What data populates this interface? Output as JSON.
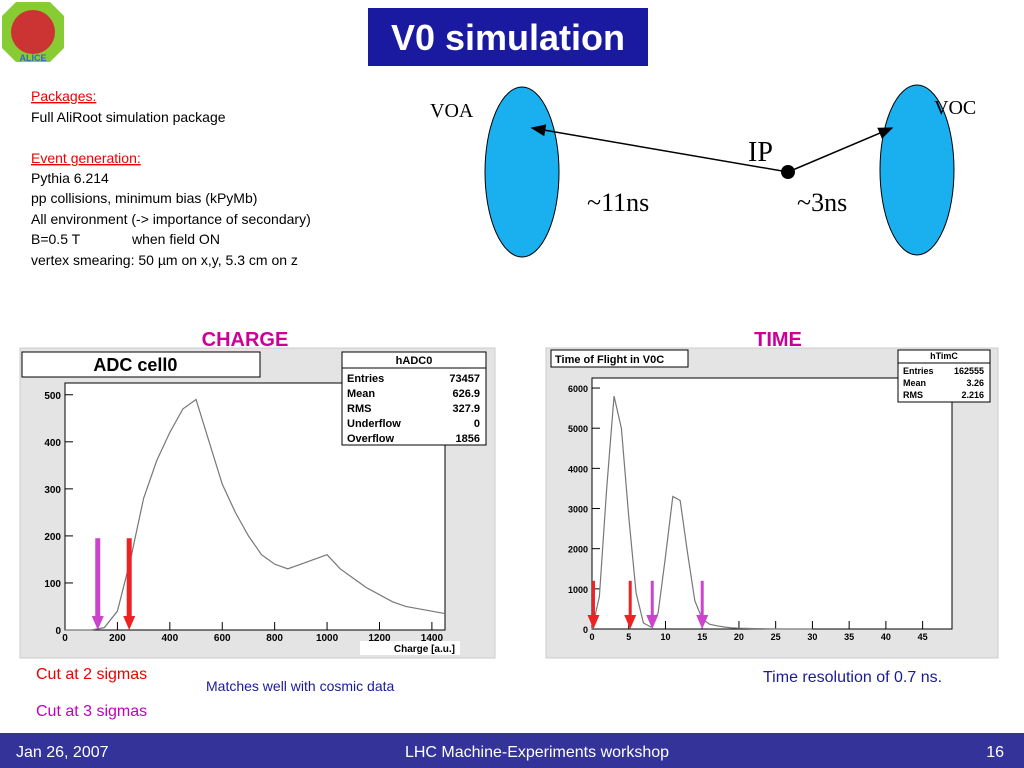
{
  "title": "V0 simulation",
  "logo": "ALICE",
  "packages": {
    "heading": "Packages:",
    "lines": [
      "Full AliRoot simulation package"
    ]
  },
  "event_generation": {
    "heading": "Event generation:",
    "lines": [
      "Pythia 6.214",
      "pp collisions, minimum bias (kPyMb)",
      "All environment (-> importance of secondary)",
      "B=0.5 T",
      "vertex smearing: 50 µm on x,y, 5.3 cm on z"
    ],
    "field_note": "when field ON"
  },
  "diagram": {
    "left": "VOA",
    "right": "VOC",
    "point": "IP",
    "left_time": "~11ns",
    "right_time": "~3ns"
  },
  "headings": [
    "CHARGE",
    "TIME"
  ],
  "chart_data": [
    {
      "type": "histogram",
      "title": "ADC cell0",
      "xlabel": "Charge [a.u.]",
      "color": "#777777",
      "stats": {
        "name": "hADC0",
        "rows": [
          [
            "Entries",
            "73457"
          ],
          [
            "Mean",
            "626.9"
          ],
          [
            "RMS",
            "327.9"
          ],
          [
            "Underflow",
            "0"
          ],
          [
            "Overflow",
            "1856"
          ]
        ]
      },
      "x": [
        0,
        50,
        100,
        150,
        200,
        250,
        300,
        350,
        400,
        450,
        500,
        550,
        600,
        650,
        700,
        750,
        800,
        850,
        900,
        950,
        1000,
        1050,
        1100,
        1150,
        1200,
        1250,
        1300,
        1350,
        1400,
        1450
      ],
      "values": [
        0,
        0,
        0,
        5,
        40,
        150,
        280,
        360,
        420,
        470,
        490,
        400,
        310,
        250,
        200,
        160,
        140,
        130,
        140,
        150,
        160,
        130,
        110,
        90,
        75,
        60,
        50,
        45,
        40,
        35
      ],
      "xlim": [
        0,
        1450
      ],
      "ylim": [
        0,
        525
      ],
      "xticks": [
        0,
        200,
        400,
        600,
        800,
        1000,
        1200,
        1400
      ],
      "yticks": [
        0,
        100,
        200,
        300,
        400,
        500
      ],
      "arrows": [
        {
          "x": 125,
          "y": 195,
          "color": "#cc44cc"
        },
        {
          "x": 245,
          "y": 195,
          "color": "#ee2222"
        }
      ]
    },
    {
      "type": "histogram",
      "title": "Time of Flight in V0C",
      "color": "#777777",
      "stats": {
        "name": "hTimC",
        "rows": [
          [
            "Entries",
            "162555"
          ],
          [
            "Mean",
            "3.26"
          ],
          [
            "RMS",
            "2.216"
          ]
        ]
      },
      "x": [
        0,
        1,
        2,
        3,
        4,
        5,
        6,
        7,
        8,
        9,
        10,
        11,
        12,
        13,
        14,
        15,
        16,
        17,
        18,
        19,
        20,
        21,
        22,
        23,
        24,
        25,
        26,
        27,
        28,
        29,
        30
      ],
      "values": [
        0,
        800,
        3500,
        5800,
        5000,
        2800,
        900,
        150,
        50,
        400,
        1800,
        3300,
        3200,
        1900,
        700,
        250,
        120,
        80,
        50,
        30,
        20,
        15,
        10,
        8,
        5,
        3,
        0,
        0,
        0,
        0,
        0
      ],
      "xlim": [
        0,
        49
      ],
      "ylim": [
        0,
        6250
      ],
      "xticks": [
        0,
        5,
        10,
        15,
        20,
        25,
        30,
        35,
        40,
        45
      ],
      "yticks": [
        0,
        1000,
        2000,
        3000,
        4000,
        5000,
        6000
      ],
      "arrows": [
        {
          "x": 0.2,
          "y": 1200,
          "color": "#ee2222"
        },
        {
          "x": 5.2,
          "y": 1200,
          "color": "#ee2222"
        },
        {
          "x": 8.2,
          "y": 1200,
          "color": "#cc44cc"
        },
        {
          "x": 15,
          "y": 1200,
          "color": "#cc44cc"
        }
      ]
    }
  ],
  "notes": {
    "cut2": "Cut at 2 sigmas",
    "cut3": "Cut at 3 sigmas",
    "cosmic": "Matches well with cosmic data",
    "resolution": "Time resolution of 0.7 ns."
  },
  "footer": {
    "date": "Jan 26, 2007",
    "event": "LHC Machine-Experiments workshop",
    "page": "16"
  }
}
